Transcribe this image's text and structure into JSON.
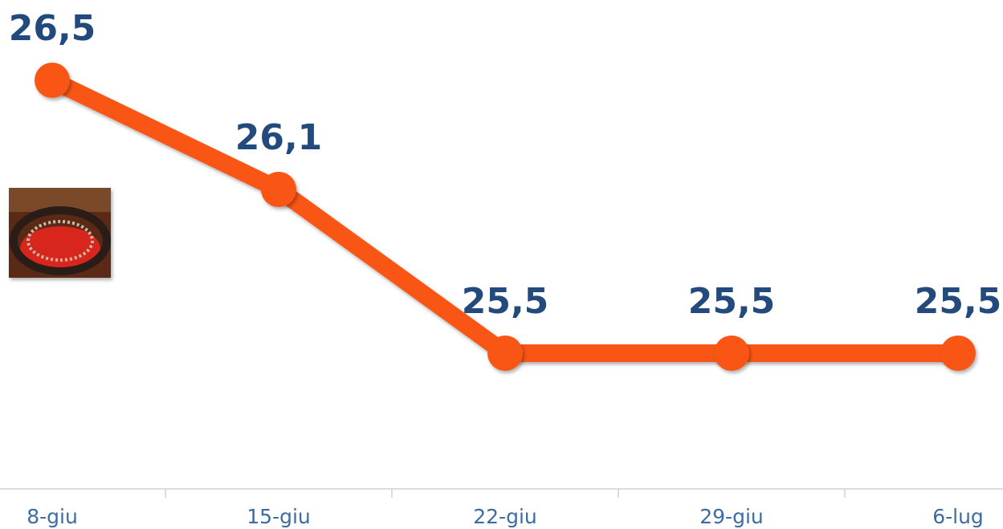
{
  "chart_data": {
    "type": "line",
    "categories": [
      "8-giu",
      "15-giu",
      "22-giu",
      "29-giu",
      "6-lug"
    ],
    "values": [
      26.5,
      26.1,
      25.5,
      25.5,
      25.5
    ],
    "value_labels": [
      "26,5",
      "26,1",
      "25,5",
      "25,5",
      "25,5"
    ],
    "color": "#f95716"
  }
}
